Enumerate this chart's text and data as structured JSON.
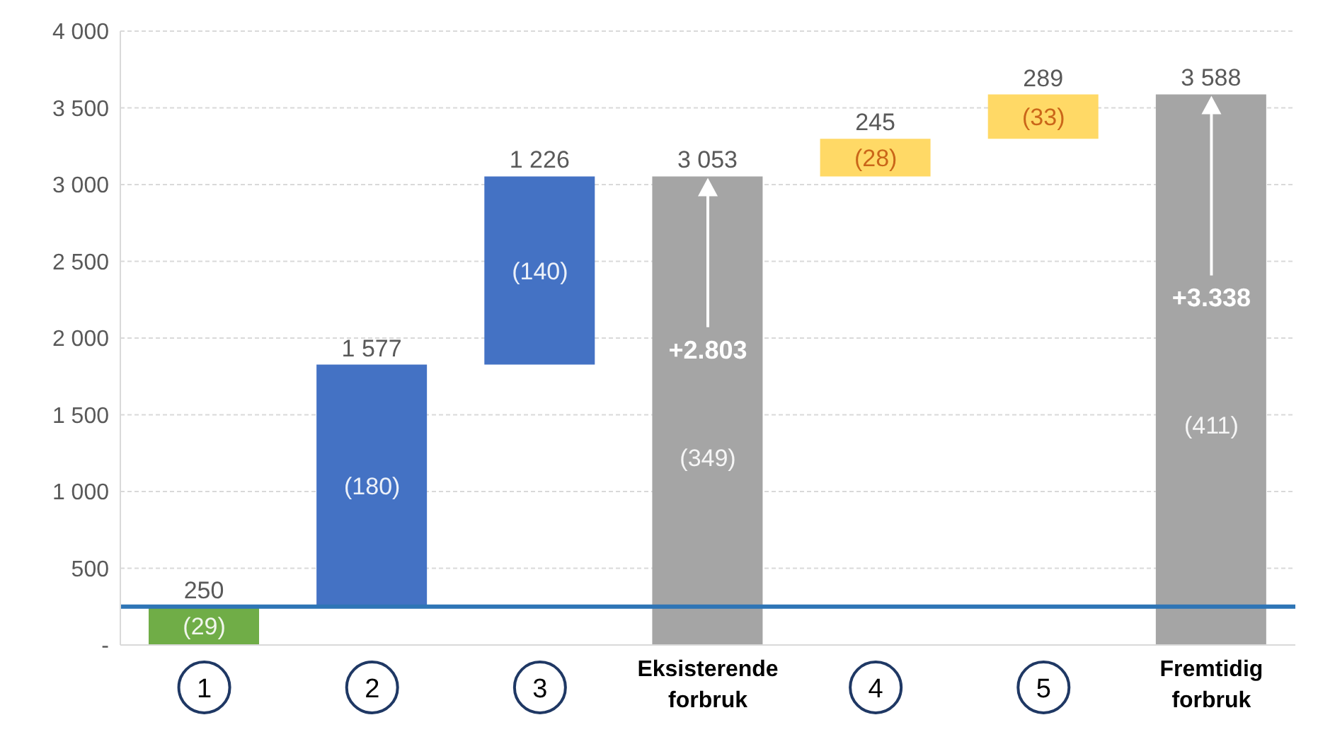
{
  "chart_data": {
    "type": "bar",
    "categories": [
      "1",
      "2",
      "3",
      "Eksisterende forbruk",
      "4",
      "5",
      "Fremtidig forbruk"
    ],
    "base": [
      0,
      250,
      1827,
      0,
      3053,
      3298,
      0
    ],
    "values": [
      250,
      1577,
      1226,
      3053,
      245,
      289,
      3588
    ],
    "colors": [
      "#70ad47",
      "#4472c4",
      "#4472c4",
      "#a5a5a5",
      "#ffd966",
      "#ffd966",
      "#a5a5a5"
    ],
    "value_labels": [
      "250",
      "1 577",
      "1 226",
      "3 053",
      "245",
      "289",
      "3 588"
    ],
    "ylim": [
      0,
      4000
    ],
    "yticks": [
      {
        "value": 0,
        "label": "-"
      },
      500,
      {
        "value": 1000,
        "label": "1 000"
      },
      {
        "value": 1500,
        "label": "1 500"
      },
      {
        "value": 2000,
        "label": "2 000"
      },
      {
        "value": 2500,
        "label": "2 500"
      },
      {
        "value": 3000,
        "label": "3 000"
      },
      {
        "value": 3500,
        "label": "3 500"
      },
      {
        "value": 4000,
        "label": "4 000"
      }
    ],
    "grid": "y",
    "ref_lines": [
      {
        "axis": "y",
        "value": 250,
        "color": "#2e75b6"
      }
    ],
    "annotations": [
      "(29)",
      "(180)",
      "(140)",
      "(349)",
      "(28)",
      "(33)",
      "(411)",
      "+2.803",
      "+3.338"
    ]
  }
}
